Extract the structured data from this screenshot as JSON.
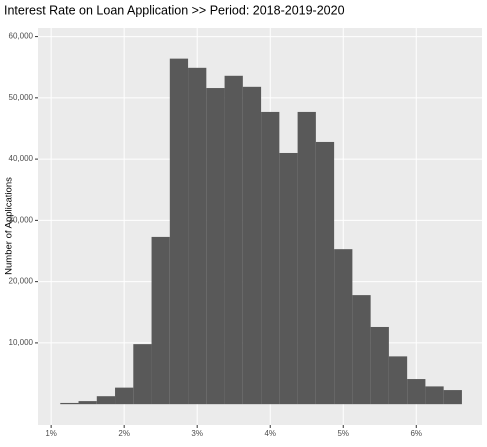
{
  "chart_data": {
    "type": "histogram",
    "title": "Interest Rate on Loan Application >> Period: 2018-2019-2020",
    "ylabel": "Number of Applications",
    "bins": [
      1.125,
      1.375,
      1.625,
      1.875,
      2.125,
      2.375,
      2.625,
      2.875,
      3.125,
      3.375,
      3.625,
      3.875,
      4.125,
      4.375,
      4.625,
      4.875,
      5.125,
      5.375,
      5.625,
      5.875,
      6.125,
      6.375,
      6.625
    ],
    "values": [
      200,
      500,
      1300,
      2700,
      9800,
      27300,
      56400,
      54900,
      51600,
      53600,
      51800,
      47700,
      41000,
      47700,
      42800,
      25300,
      17800,
      12600,
      7800,
      4100,
      2900,
      2300
    ],
    "color": "#595959",
    "xlim": [
      0.82,
      6.9
    ],
    "xticks": [
      {
        "value": 1,
        "label": "1%"
      },
      {
        "value": 2,
        "label": "2%"
      },
      {
        "value": 3,
        "label": "3%"
      },
      {
        "value": 4,
        "label": "4%"
      },
      {
        "value": 5,
        "label": "5%"
      },
      {
        "value": 6,
        "label": "6%"
      }
    ],
    "ylim": [
      -3400,
      61400
    ],
    "yticks": [
      {
        "value": 10000,
        "label": "10,000"
      },
      {
        "value": 20000,
        "label": "20,000"
      },
      {
        "value": 30000,
        "label": "30,000"
      },
      {
        "value": 40000,
        "label": "40,000"
      },
      {
        "value": 50000,
        "label": "50,000"
      },
      {
        "value": 60000,
        "label": "60,000"
      }
    ],
    "grid": true
  }
}
